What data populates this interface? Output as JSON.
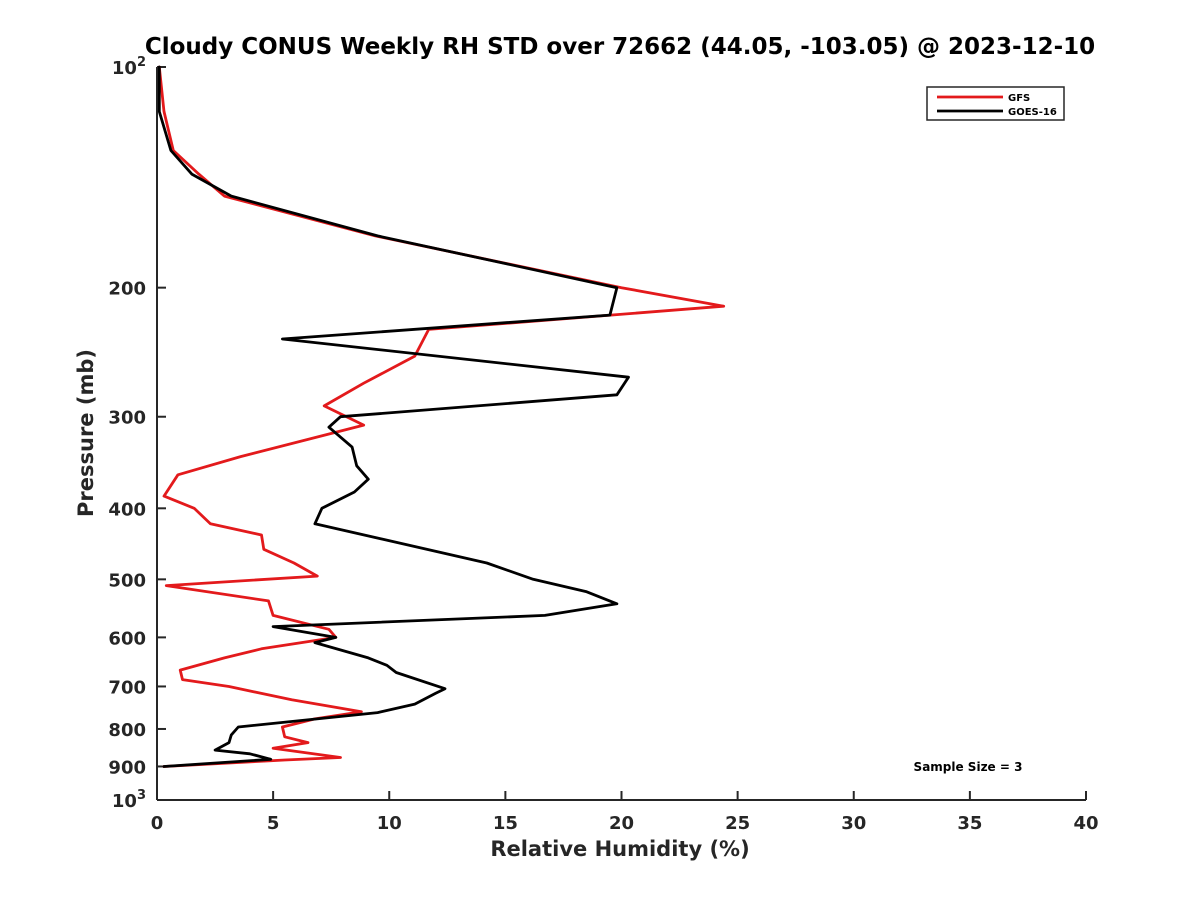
{
  "chart_data": {
    "type": "line",
    "title": "Cloudy CONUS Weekly RH STD over 72662 (44.05, -103.05) @ 2023-12-10",
    "xlabel": "Relative Humidity (%)",
    "ylabel": "Pressure (mb)",
    "xlim": [
      0,
      40
    ],
    "ylim": [
      100,
      1000
    ],
    "y_scale": "log",
    "y_reversed": true,
    "x_ticks": [
      "0",
      "5",
      "10",
      "15",
      "20",
      "25",
      "30",
      "35",
      "40"
    ],
    "x_tick_values": [
      0,
      5,
      10,
      15,
      20,
      25,
      30,
      35,
      40
    ],
    "y_ticks": [
      {
        "value": 100,
        "base": "10",
        "exp": "2"
      },
      {
        "value": 200,
        "label": "200"
      },
      {
        "value": 300,
        "label": "300"
      },
      {
        "value": 400,
        "label": "400"
      },
      {
        "value": 500,
        "label": "500"
      },
      {
        "value": 600,
        "label": "600"
      },
      {
        "value": 700,
        "label": "700"
      },
      {
        "value": 800,
        "label": "800"
      },
      {
        "value": 900,
        "label": "900"
      },
      {
        "value": 1000,
        "base": "10",
        "exp": "3"
      }
    ],
    "legend_position": "top-right",
    "grid": false,
    "annotation": "Sample Size = 3",
    "series": [
      {
        "name": "GFS",
        "color": "#e31a1c",
        "points": [
          [
            0.1,
            100
          ],
          [
            0.3,
            115
          ],
          [
            0.7,
            130
          ],
          [
            1.8,
            140
          ],
          [
            2.9,
            150
          ],
          [
            9.4,
            170
          ],
          [
            20,
            200
          ],
          [
            24.4,
            212
          ],
          [
            11.7,
            228
          ],
          [
            11.1,
            248
          ],
          [
            8.9,
            270
          ],
          [
            7.2,
            290
          ],
          [
            8.9,
            308
          ],
          [
            3.6,
            340
          ],
          [
            0.9,
            360
          ],
          [
            0.3,
            385
          ],
          [
            1.6,
            400
          ],
          [
            2.3,
            420
          ],
          [
            4.5,
            435
          ],
          [
            4.6,
            455
          ],
          [
            5.9,
            475
          ],
          [
            6.9,
            495
          ],
          [
            0.4,
            510
          ],
          [
            4.8,
            535
          ],
          [
            5,
            560
          ],
          [
            7.4,
            585
          ],
          [
            7.7,
            600
          ],
          [
            4.5,
            622
          ],
          [
            2.9,
            640
          ],
          [
            1,
            665
          ],
          [
            1.1,
            685
          ],
          [
            3.1,
            700
          ],
          [
            5.8,
            730
          ],
          [
            8.8,
            758
          ],
          [
            6.8,
            775
          ],
          [
            5.4,
            795
          ],
          [
            5.5,
            820
          ],
          [
            6.5,
            835
          ],
          [
            5,
            850
          ],
          [
            7.9,
            875
          ],
          [
            5.5,
            882
          ],
          [
            0.3,
            900
          ]
        ]
      },
      {
        "name": "GOES-16",
        "color": "#000000",
        "points": [
          [
            0.1,
            100
          ],
          [
            0.1,
            115
          ],
          [
            0.6,
            130
          ],
          [
            1.5,
            140
          ],
          [
            3.2,
            150
          ],
          [
            9.5,
            170
          ],
          [
            19.8,
            200
          ],
          [
            19.5,
            218
          ],
          [
            5.4,
            235
          ],
          [
            20.3,
            265
          ],
          [
            19.8,
            280
          ],
          [
            7.9,
            300
          ],
          [
            7.4,
            310
          ],
          [
            8.4,
            330
          ],
          [
            8.6,
            350
          ],
          [
            9.1,
            365
          ],
          [
            8.5,
            380
          ],
          [
            7.1,
            400
          ],
          [
            6.8,
            420
          ],
          [
            14.2,
            475
          ],
          [
            16.2,
            500
          ],
          [
            18.5,
            520
          ],
          [
            19.8,
            540
          ],
          [
            16.7,
            560
          ],
          [
            5,
            580
          ],
          [
            7.7,
            600
          ],
          [
            6.8,
            610
          ],
          [
            9.1,
            640
          ],
          [
            9.9,
            655
          ],
          [
            10.3,
            670
          ],
          [
            12.4,
            705
          ],
          [
            12,
            715
          ],
          [
            11.1,
            740
          ],
          [
            9.5,
            760
          ],
          [
            3.5,
            795
          ],
          [
            3.2,
            815
          ],
          [
            3.1,
            835
          ],
          [
            2.5,
            855
          ],
          [
            4,
            865
          ],
          [
            4.9,
            880
          ],
          [
            0.3,
            900
          ]
        ]
      }
    ]
  }
}
